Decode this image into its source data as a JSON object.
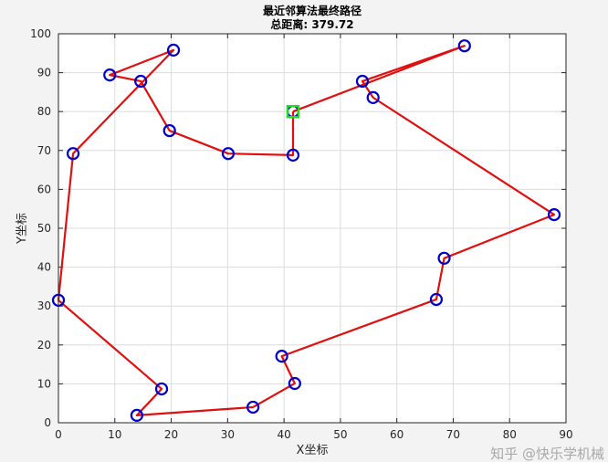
{
  "chart_data": {
    "type": "line",
    "title": "最近邻算法最终路径",
    "subtitle": "总距离: 379.72",
    "xlabel": "X坐标",
    "ylabel": "Y坐标",
    "xlim": [
      0,
      90
    ],
    "ylim": [
      0,
      100
    ],
    "xticks": [
      0,
      10,
      20,
      30,
      40,
      50,
      60,
      70,
      80,
      90
    ],
    "yticks": [
      0,
      10,
      20,
      30,
      40,
      50,
      60,
      70,
      80,
      90,
      100
    ],
    "grid": true,
    "start": [
      41.6,
      80.0
    ],
    "route": [
      [
        41.6,
        80.0
      ],
      [
        41.6,
        68.8
      ],
      [
        30.1,
        69.2
      ],
      [
        19.7,
        75.1
      ],
      [
        14.6,
        87.8
      ],
      [
        9.1,
        89.4
      ],
      [
        20.4,
        95.8
      ],
      [
        2.6,
        69.2
      ],
      [
        0.0,
        31.5
      ],
      [
        18.3,
        8.7
      ],
      [
        13.9,
        1.9
      ],
      [
        34.5,
        4.0
      ],
      [
        41.9,
        10.1
      ],
      [
        39.6,
        17.1
      ],
      [
        67.0,
        31.7
      ],
      [
        68.4,
        42.3
      ],
      [
        87.9,
        53.5
      ],
      [
        55.8,
        83.6
      ],
      [
        53.9,
        87.8
      ],
      [
        72.0,
        96.9
      ],
      [
        41.6,
        80.0
      ]
    ],
    "colors": {
      "route": "#e01010",
      "city": "#0000cc",
      "start": "#22dd22"
    }
  },
  "watermark": "知乎 @快乐学机械"
}
